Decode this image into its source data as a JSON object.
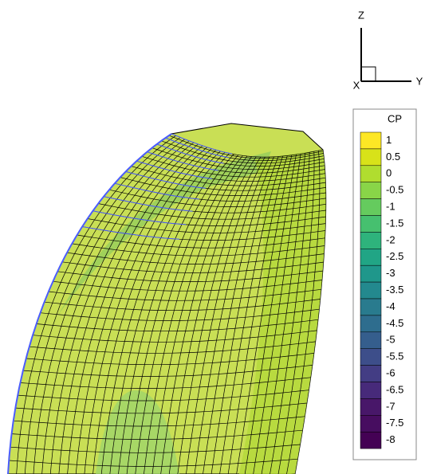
{
  "axes": {
    "z": "Z",
    "y": "Y",
    "x": "X"
  },
  "legend": {
    "title": "CP",
    "levels": [
      1,
      0.5,
      0,
      -0.5,
      -1,
      -1.5,
      -2,
      -2.5,
      -3,
      -3.5,
      -4,
      -4.5,
      -5,
      -5.5,
      -6,
      -6.5,
      -7,
      -7.5,
      -8
    ],
    "colors": [
      "#fde725",
      "#d8e219",
      "#b0dd2f",
      "#89d548",
      "#65cb5e",
      "#46c06f",
      "#2eb37c",
      "#21a585",
      "#1f978b",
      "#23898e",
      "#297b8e",
      "#2e6d8e",
      "#355e8d",
      "#3d4e8a",
      "#433d84",
      "#472a7a",
      "#481769",
      "#470d60",
      "#440154"
    ]
  }
}
